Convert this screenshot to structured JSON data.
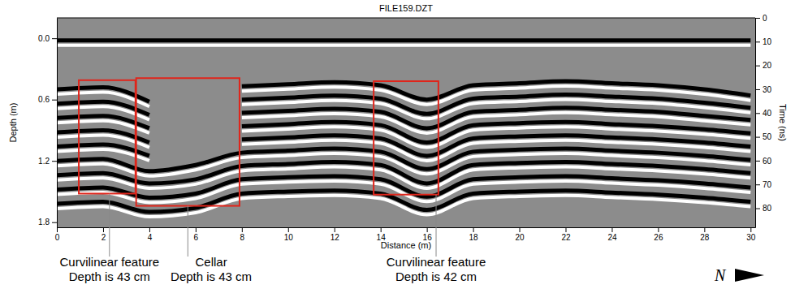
{
  "chart_data": {
    "type": "radargram",
    "title": "FILE159.DZT",
    "x_label": "Distance (m)",
    "y_label": "Depth (m)",
    "y2_label": "Time (ns)",
    "color": "#000000",
    "x": [
      0,
      2,
      4,
      6,
      8,
      10,
      12,
      14,
      16,
      18,
      20,
      22,
      24,
      26,
      28,
      30
    ],
    "series": [
      {
        "values": [
          0.02,
          0.02,
          0.02,
          0.02,
          0.02,
          0.02,
          0.02,
          0.02,
          0.02,
          0.02,
          0.02,
          0.02,
          0.02,
          0.02,
          0.02,
          0.02
        ]
      },
      {
        "values": [
          0.5,
          0.48,
          0.62,
          null,
          0.47,
          0.45,
          0.43,
          0.46,
          0.6,
          0.46,
          0.44,
          0.42,
          0.44,
          0.46,
          0.5,
          0.56
        ]
      },
      {
        "values": [
          0.64,
          0.62,
          0.75,
          null,
          0.6,
          0.58,
          0.56,
          0.59,
          0.74,
          0.59,
          0.57,
          0.55,
          0.57,
          0.59,
          0.63,
          0.68
        ]
      },
      {
        "values": [
          0.78,
          0.76,
          0.88,
          null,
          0.73,
          0.71,
          0.69,
          0.72,
          0.88,
          0.72,
          0.7,
          0.68,
          0.7,
          0.72,
          0.76,
          0.8
        ]
      },
      {
        "values": [
          0.92,
          0.9,
          1.02,
          null,
          0.86,
          0.84,
          0.82,
          0.85,
          1.02,
          0.85,
          0.83,
          0.82,
          0.84,
          0.86,
          0.89,
          0.93
        ]
      },
      {
        "values": [
          1.06,
          1.04,
          1.15,
          null,
          0.99,
          0.97,
          0.95,
          0.98,
          1.15,
          0.98,
          0.96,
          0.95,
          0.97,
          0.99,
          1.02,
          1.06
        ]
      },
      {
        "values": [
          1.2,
          1.18,
          1.3,
          1.24,
          1.12,
          1.1,
          1.08,
          1.11,
          1.28,
          1.11,
          1.09,
          1.08,
          1.1,
          1.12,
          1.15,
          1.19
        ]
      },
      {
        "values": [
          1.34,
          1.32,
          1.42,
          1.38,
          1.25,
          1.23,
          1.21,
          1.24,
          1.42,
          1.24,
          1.22,
          1.21,
          1.23,
          1.25,
          1.28,
          1.32
        ]
      },
      {
        "values": [
          1.48,
          1.46,
          1.56,
          1.52,
          1.38,
          1.36,
          1.35,
          1.38,
          1.55,
          1.38,
          1.36,
          1.35,
          1.37,
          1.39,
          1.42,
          1.46
        ]
      },
      {
        "values": [
          1.62,
          1.6,
          1.7,
          1.66,
          1.52,
          1.5,
          1.49,
          1.52,
          1.68,
          1.52,
          1.5,
          1.49,
          1.51,
          1.53,
          1.56,
          1.6
        ]
      }
    ],
    "xlim": [
      0,
      30.2
    ],
    "xticks": [
      0,
      2,
      4,
      6,
      8,
      10,
      12,
      14,
      16,
      18,
      20,
      22,
      24,
      26,
      28,
      30
    ],
    "ylim": [
      -0.2,
      1.85
    ],
    "yticks": [
      {
        "value": 0,
        "label": "0.0"
      },
      0.6,
      1.2,
      1.8
    ],
    "y2lim": [
      0,
      88
    ],
    "y2ticks": [
      0,
      10,
      20,
      30,
      40,
      50,
      60,
      70,
      80
    ],
    "annotations": [
      {
        "label": "Curvilinear feature",
        "text": "Depth is 43 cm",
        "box_x": [
          0.95,
          3.4
        ],
        "box_depth": [
          0.41,
          1.52
        ]
      },
      {
        "label": "Cellar",
        "text": "Depth is 43 cm",
        "box_x": [
          3.43,
          7.9
        ],
        "box_depth": [
          0.39,
          1.64
        ]
      },
      {
        "label": "Curvilinear feature",
        "text": "Depth is 42 cm",
        "box_x": [
          13.7,
          16.5
        ],
        "box_depth": [
          0.42,
          1.53
        ]
      }
    ],
    "north": "N"
  }
}
